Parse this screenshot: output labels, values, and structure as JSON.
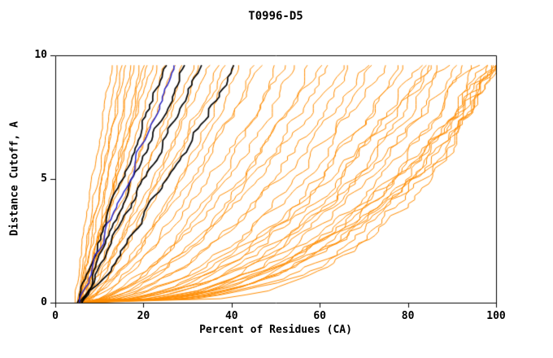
{
  "chart_data": {
    "type": "line",
    "title": "T0996-D5",
    "xlabel": "Percent of Residues (CA)",
    "ylabel": "Distance Cutoff, A",
    "xlim": [
      0,
      100
    ],
    "ylim": [
      0,
      10
    ],
    "xticks": [
      0,
      20,
      40,
      60,
      80,
      100
    ],
    "yticks": [
      0,
      5,
      10
    ],
    "curve_top_y": 9.6,
    "grid": false,
    "legend": "none",
    "colors": {
      "orange": "#ff8c00",
      "black": "#000000",
      "blue": "#2626cc"
    },
    "curves": [
      {
        "color": "orange",
        "x_start": 4.5,
        "x_end": 13,
        "shape": 1.15
      },
      {
        "color": "orange",
        "x_start": 5,
        "x_end": 14,
        "shape": 1.0
      },
      {
        "color": "orange",
        "x_start": 5.5,
        "x_end": 15,
        "shape": 0.95
      },
      {
        "color": "orange",
        "x_start": 5,
        "x_end": 16,
        "shape": 1.1
      },
      {
        "color": "orange",
        "x_start": 6,
        "x_end": 17,
        "shape": 0.9
      },
      {
        "color": "orange",
        "x_start": 5.5,
        "x_end": 18,
        "shape": 1.05
      },
      {
        "color": "orange",
        "x_start": 6,
        "x_end": 19,
        "shape": 0.85
      },
      {
        "color": "orange",
        "x_start": 6.5,
        "x_end": 20,
        "shape": 1.0
      },
      {
        "color": "orange",
        "x_start": 5,
        "x_end": 21,
        "shape": 0.9
      },
      {
        "color": "orange",
        "x_start": 6,
        "x_end": 22,
        "shape": 1.1
      },
      {
        "color": "orange",
        "x_start": 5,
        "x_end": 23,
        "shape": 0.9
      },
      {
        "color": "orange",
        "x_start": 6,
        "x_end": 25,
        "shape": 0.8
      },
      {
        "color": "orange",
        "x_start": 5.5,
        "x_end": 27,
        "shape": 1.0
      },
      {
        "color": "orange",
        "x_start": 6,
        "x_end": 29,
        "shape": 0.75
      },
      {
        "color": "orange",
        "x_start": 5,
        "x_end": 31,
        "shape": 0.9
      },
      {
        "color": "orange",
        "x_start": 6.5,
        "x_end": 33,
        "shape": 0.7
      },
      {
        "color": "orange",
        "x_start": 5.5,
        "x_end": 35,
        "shape": 0.85
      },
      {
        "color": "orange",
        "x_start": 6,
        "x_end": 37,
        "shape": 0.75
      },
      {
        "color": "orange",
        "x_start": 5,
        "x_end": 39,
        "shape": 0.9
      },
      {
        "color": "orange",
        "x_start": 6,
        "x_end": 40,
        "shape": 0.65
      },
      {
        "color": "orange",
        "x_start": 5,
        "x_end": 42,
        "shape": 0.7
      },
      {
        "color": "orange",
        "x_start": 6,
        "x_end": 45,
        "shape": 0.6
      },
      {
        "color": "orange",
        "x_start": 5.5,
        "x_end": 47,
        "shape": 0.75
      },
      {
        "color": "orange",
        "x_start": 6,
        "x_end": 50,
        "shape": 0.55
      },
      {
        "color": "orange",
        "x_start": 5,
        "x_end": 52,
        "shape": 0.7
      },
      {
        "color": "orange",
        "x_start": 6.5,
        "x_end": 55,
        "shape": 0.6
      },
      {
        "color": "orange",
        "x_start": 5.5,
        "x_end": 57,
        "shape": 0.5
      },
      {
        "color": "orange",
        "x_start": 6,
        "x_end": 60,
        "shape": 0.65
      },
      {
        "color": "orange",
        "x_start": 5,
        "x_end": 62,
        "shape": 0.55
      },
      {
        "color": "orange",
        "x_start": 6,
        "x_end": 65,
        "shape": 0.6
      },
      {
        "color": "orange",
        "x_start": 5.5,
        "x_end": 67,
        "shape": 0.5
      },
      {
        "color": "orange",
        "x_start": 6,
        "x_end": 70,
        "shape": 0.55
      },
      {
        "color": "orange",
        "x_start": 5,
        "x_end": 72,
        "shape": 0.45
      },
      {
        "color": "orange",
        "x_start": 6,
        "x_end": 75,
        "shape": 0.5
      },
      {
        "color": "orange",
        "x_start": 6.5,
        "x_end": 77,
        "shape": 0.42
      },
      {
        "color": "orange",
        "x_start": 5.5,
        "x_end": 80,
        "shape": 0.48
      },
      {
        "color": "orange",
        "x_start": 6,
        "x_end": 82,
        "shape": 0.4
      },
      {
        "color": "orange",
        "x_start": 5,
        "x_end": 84,
        "shape": 0.45
      },
      {
        "color": "orange",
        "x_start": 6,
        "x_end": 85,
        "shape": 0.5
      },
      {
        "color": "orange",
        "x_start": 5.5,
        "x_end": 85,
        "shape": 0.38
      },
      {
        "color": "orange",
        "x_start": 6,
        "x_end": 87,
        "shape": 0.42
      },
      {
        "color": "orange",
        "x_start": 5,
        "x_end": 89,
        "shape": 0.38
      },
      {
        "color": "orange",
        "x_start": 6,
        "x_end": 91,
        "shape": 0.45
      },
      {
        "color": "orange",
        "x_start": 5.5,
        "x_end": 93,
        "shape": 0.35
      },
      {
        "color": "orange",
        "x_start": 6,
        "x_end": 95,
        "shape": 0.4
      },
      {
        "color": "orange",
        "x_start": 5,
        "x_end": 96,
        "shape": 0.33
      },
      {
        "color": "orange",
        "x_start": 6.5,
        "x_end": 97,
        "shape": 0.38
      },
      {
        "color": "orange",
        "x_start": 5.5,
        "x_end": 98,
        "shape": 0.35
      },
      {
        "color": "orange",
        "x_start": 6,
        "x_end": 99,
        "shape": 0.4
      },
      {
        "color": "orange",
        "x_start": 5,
        "x_end": 100,
        "shape": 0.32
      },
      {
        "color": "orange",
        "x_start": 6,
        "x_end": 100,
        "shape": 0.36
      },
      {
        "color": "orange",
        "x_start": 5.5,
        "x_end": 100,
        "shape": 0.3
      },
      {
        "color": "orange",
        "x_start": 6,
        "x_end": 100,
        "shape": 0.42
      },
      {
        "color": "orange",
        "x_start": 5,
        "x_end": 100,
        "shape": 0.34
      },
      {
        "color": "orange",
        "x_start": 6.5,
        "x_end": 100,
        "shape": 0.28
      },
      {
        "color": "black",
        "x_start": 5,
        "x_end": 25,
        "shape": 1.05
      },
      {
        "color": "black",
        "x_start": 5.5,
        "x_end": 29,
        "shape": 0.95
      },
      {
        "color": "black",
        "x_start": 6,
        "x_end": 33,
        "shape": 1.0
      },
      {
        "color": "black",
        "x_start": 6,
        "x_end": 41,
        "shape": 0.9
      },
      {
        "color": "blue",
        "x_start": 5.5,
        "x_end": 27,
        "shape": 1.0
      }
    ]
  }
}
